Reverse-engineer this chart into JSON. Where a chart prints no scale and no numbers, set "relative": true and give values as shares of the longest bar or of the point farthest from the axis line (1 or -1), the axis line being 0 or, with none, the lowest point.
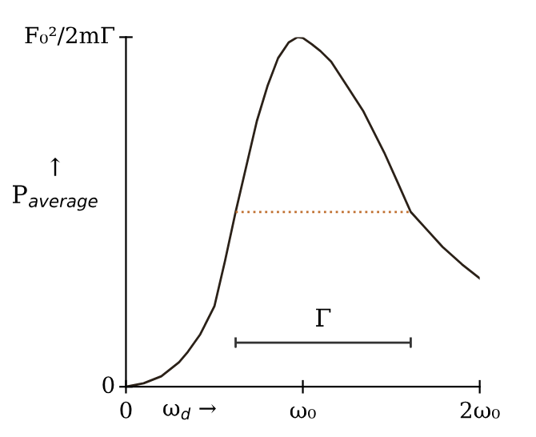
{
  "chart_data": {
    "type": "line",
    "xlabel": "ω$_{d}$ →",
    "ylabel": "↑\nP$_{average}$",
    "xlim": [
      0,
      2
    ],
    "relative": true,
    "xticks": [
      0,
      {
        "value": 1,
        "label": "ω₀"
      },
      {
        "value": 2,
        "label": "2ω₀"
      }
    ],
    "grid": false,
    "legend": false,
    "series": [
      {
        "color": "#2b2118",
        "line_style": "solid",
        "x": [
          0,
          0.1,
          0.2,
          0.3,
          0.35,
          0.42,
          0.5,
          0.56,
          0.62,
          0.68,
          0.74,
          0.8,
          0.86,
          0.92,
          0.97,
          1.0,
          1.05,
          1.1,
          1.16,
          1.25,
          1.34,
          1.46,
          1.54,
          1.61,
          1.7,
          1.79,
          1.9,
          2.0
        ],
        "values": [
          0,
          0.01,
          0.03,
          0.07,
          0.1,
          0.15,
          0.23,
          0.36,
          0.5,
          0.63,
          0.76,
          0.86,
          0.94,
          0.985,
          1.0,
          0.998,
          0.98,
          0.96,
          0.93,
          0.86,
          0.79,
          0.67,
          0.58,
          0.5,
          0.45,
          0.4,
          0.35,
          0.31
        ]
      },
      {
        "color": "#c07030",
        "line_style": "dotted",
        "x": [
          0.62,
          1.61
        ],
        "values": [
          0.5,
          0.5
        ]
      }
    ],
    "annotations": [
      "F₀²/2mΓ",
      "0",
      "Γ"
    ]
  }
}
